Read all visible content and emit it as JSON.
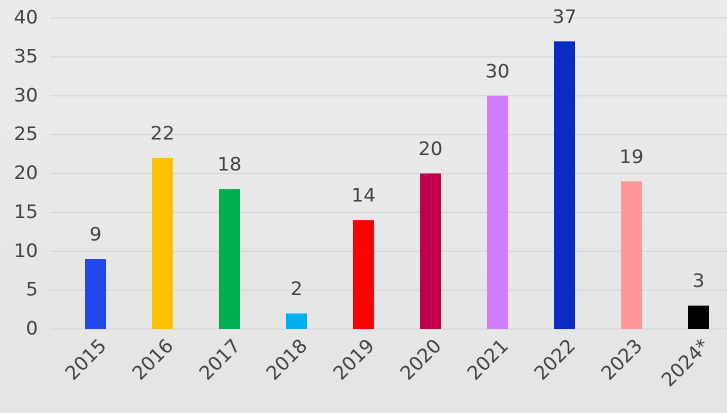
{
  "chart_data": {
    "type": "bar",
    "categories": [
      "2015",
      "2016",
      "2017",
      "2018",
      "2019",
      "2020",
      "2021",
      "2022",
      "2023",
      "2024*"
    ],
    "values": [
      9,
      22,
      18,
      2,
      14,
      20,
      30,
      37,
      19,
      3
    ],
    "colors": [
      "#2347e8",
      "#ffc000",
      "#00b050",
      "#00b0f0",
      "#ff0000",
      "#c0004a",
      "#d47cff",
      "#0a2bc4",
      "#ff9999",
      "#000000"
    ],
    "ylim": [
      0,
      40
    ],
    "yticks": [
      0,
      5,
      10,
      15,
      20,
      25,
      30,
      35,
      40
    ],
    "grid": true
  }
}
